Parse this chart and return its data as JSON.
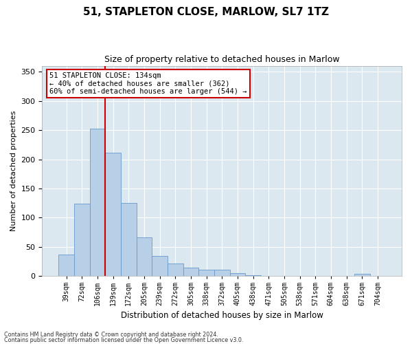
{
  "title1": "51, STAPLETON CLOSE, MARLOW, SL7 1TZ",
  "title2": "Size of property relative to detached houses in Marlow",
  "xlabel": "Distribution of detached houses by size in Marlow",
  "ylabel": "Number of detached properties",
  "categories": [
    "39sqm",
    "72sqm",
    "106sqm",
    "139sqm",
    "172sqm",
    "205sqm",
    "239sqm",
    "272sqm",
    "305sqm",
    "338sqm",
    "372sqm",
    "405sqm",
    "438sqm",
    "471sqm",
    "505sqm",
    "538sqm",
    "571sqm",
    "604sqm",
    "638sqm",
    "671sqm",
    "704sqm"
  ],
  "values": [
    37,
    124,
    252,
    211,
    125,
    66,
    35,
    22,
    15,
    11,
    11,
    5,
    2,
    1,
    0,
    0,
    0,
    0,
    0,
    4,
    0
  ],
  "bar_color": "#b8cfe8",
  "bar_edge_color": "#6699cc",
  "vline_color": "#cc0000",
  "annotation_text": "51 STAPLETON CLOSE: 134sqm\n← 40% of detached houses are smaller (362)\n60% of semi-detached houses are larger (544) →",
  "annotation_box_color": "#ffffff",
  "annotation_box_edge": "#cc0000",
  "ylim": [
    0,
    360
  ],
  "yticks": [
    0,
    50,
    100,
    150,
    200,
    250,
    300,
    350
  ],
  "background_color": "#dce8f0",
  "footer1": "Contains HM Land Registry data © Crown copyright and database right 2024.",
  "footer2": "Contains public sector information licensed under the Open Government Licence v3.0.",
  "title_fontsize": 11,
  "subtitle_fontsize": 9,
  "tick_fontsize": 7,
  "ylabel_fontsize": 8,
  "xlabel_fontsize": 8.5
}
